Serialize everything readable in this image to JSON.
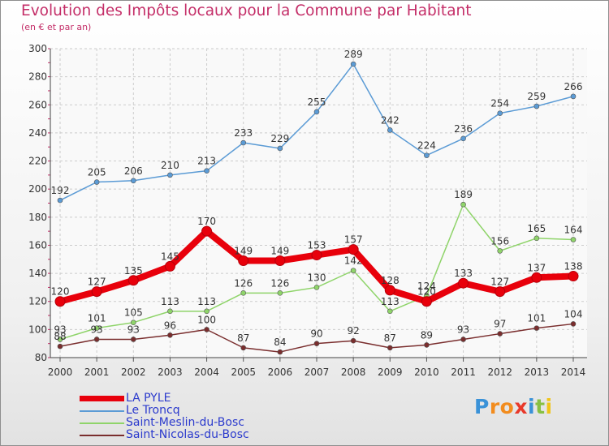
{
  "logo": {
    "letters": [
      "P",
      "r",
      "o",
      "x",
      "i",
      "t",
      "i"
    ],
    "colors": [
      "#3a92d8",
      "#f28c1e",
      "#f28c1e",
      "#e8392a",
      "#3a92d8",
      "#88c043",
      "#f0c419"
    ]
  },
  "chart_data": {
    "type": "line",
    "title": "Evolution des Impôts locaux pour la Commune par Habitant",
    "subtitle": "(en € et par an)",
    "xlabel": "",
    "ylabel": "",
    "ylim": [
      80,
      300
    ],
    "yticks": [
      "80",
      "100",
      "120",
      "140",
      "160",
      "180",
      "200",
      "220",
      "240",
      "260",
      "280",
      "300"
    ],
    "categories": [
      "2000",
      "2001",
      "2002",
      "2003",
      "2004",
      "2005",
      "2006",
      "2007",
      "2008",
      "2009",
      "2010",
      "2011",
      "2012",
      "2013",
      "2014"
    ],
    "grid": true,
    "legend_position": "bottom-left",
    "series": [
      {
        "name": "Le Troncq",
        "color": "#5b9bd5",
        "values": [
          192,
          205,
          206,
          210,
          213,
          233,
          229,
          255,
          289,
          242,
          224,
          236,
          254,
          259,
          266
        ]
      },
      {
        "name": "Saint-Meslin-du-Bosc",
        "color": "#8fd46a",
        "values": [
          93,
          101,
          105,
          113,
          113,
          126,
          126,
          130,
          142,
          113,
          124,
          189,
          156,
          165,
          164
        ]
      },
      {
        "name": "Saint-Nicolas-du-Bosc",
        "color": "#7a2e2e",
        "values": [
          88,
          93,
          93,
          96,
          100,
          87,
          84,
          90,
          92,
          87,
          89,
          93,
          97,
          101,
          104
        ]
      },
      {
        "name": "LA PYLE",
        "color": "#e8000b",
        "values": [
          120,
          127,
          135,
          145,
          170,
          149,
          149,
          153,
          157,
          128,
          120,
          133,
          127,
          137,
          138
        ]
      }
    ],
    "legend": [
      "LA PYLE",
      "Le Troncq",
      "Saint-Meslin-du-Bosc",
      "Saint-Nicolas-du-Bosc"
    ]
  }
}
